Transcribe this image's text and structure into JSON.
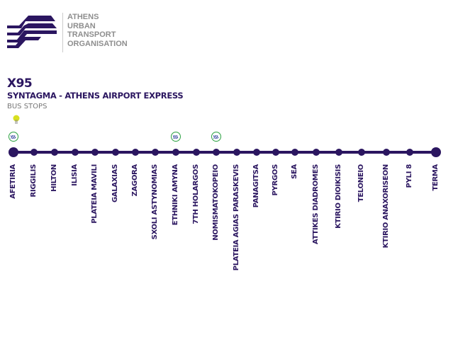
{
  "org": {
    "lines": [
      "ATHENS",
      "URBAN",
      "TRANSPORT",
      "ORGANISATION"
    ]
  },
  "route": {
    "number": "X95",
    "title": "SYNTAGMA - ATHENS AIRPORT EXPRESS",
    "subtitle": "BUS STOPS"
  },
  "colors": {
    "line": "#2b1660",
    "metro": "#2aa040",
    "tram": "#d8e020",
    "org_text": "#8e8e8e"
  },
  "stops": [
    {
      "name": "AFETIRIA",
      "metro": true,
      "tram": true
    },
    {
      "name": "RIGGILIS"
    },
    {
      "name": "HILTON"
    },
    {
      "name": "ILISIA"
    },
    {
      "name": "PLATEIA MAVILI"
    },
    {
      "name": "GALAXIAS"
    },
    {
      "name": "ZAGORA"
    },
    {
      "name": "SXOLI ASTYNOMIAS"
    },
    {
      "name": "ETHNIKI AMYNA",
      "metro": true
    },
    {
      "name": "7TH HOLARGOS"
    },
    {
      "name": "NOMISMATOKOPEIO",
      "metro": true
    },
    {
      "name": "PLATEIA AGIAS PARASKEVIS"
    },
    {
      "name": "PANAGITSA"
    },
    {
      "name": "PYRGOS"
    },
    {
      "name": "SEA"
    },
    {
      "name": "ATTIKES DIADROMES"
    },
    {
      "name": "KTIRIO DIOIKISIS"
    },
    {
      "name": "TELONEIO"
    },
    {
      "name": "KTIRIO ANAXORISEON"
    },
    {
      "name": "PYLI 8"
    },
    {
      "name": "TERMA"
    }
  ]
}
